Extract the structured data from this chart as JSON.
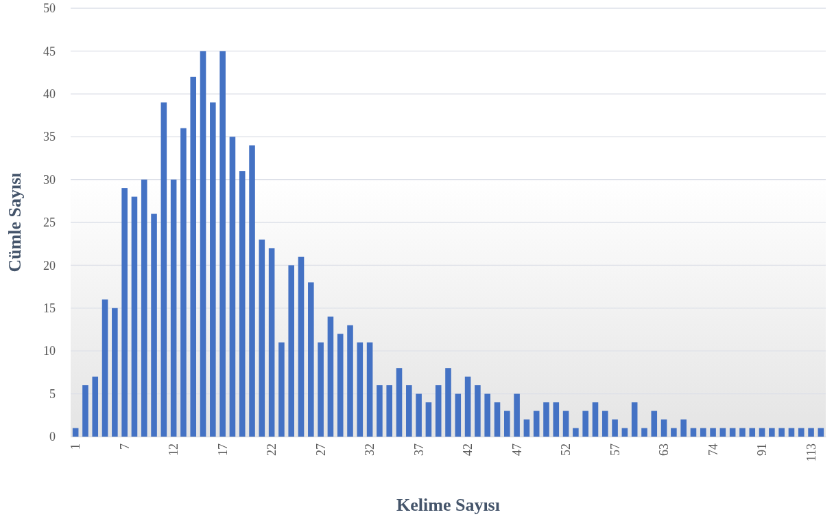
{
  "chart_data": {
    "type": "bar",
    "xlabel": "Kelime Sayısı",
    "ylabel": "Cümle Sayısı",
    "categories": [
      "1",
      null,
      null,
      null,
      null,
      "7",
      null,
      null,
      null,
      null,
      "12",
      null,
      null,
      null,
      null,
      "17",
      null,
      null,
      null,
      null,
      "22",
      null,
      null,
      null,
      null,
      "27",
      null,
      null,
      null,
      null,
      "32",
      null,
      null,
      null,
      null,
      "37",
      null,
      null,
      null,
      null,
      "42",
      null,
      null,
      null,
      null,
      "47",
      null,
      null,
      null,
      null,
      "52",
      null,
      null,
      null,
      null,
      "57",
      null,
      null,
      null,
      null,
      "63",
      null,
      null,
      null,
      null,
      "74",
      null,
      null,
      null,
      null,
      "91",
      null,
      null,
      null,
      null,
      "113",
      null
    ],
    "values": [
      1,
      6,
      7,
      16,
      15,
      29,
      28,
      30,
      26,
      39,
      30,
      36,
      42,
      45,
      39,
      45,
      35,
      31,
      34,
      23,
      22,
      11,
      20,
      21,
      18,
      11,
      14,
      12,
      13,
      11,
      11,
      6,
      6,
      8,
      6,
      5,
      4,
      6,
      8,
      5,
      7,
      6,
      5,
      4,
      3,
      5,
      2,
      3,
      4,
      4,
      3,
      1,
      3,
      4,
      3,
      2,
      1,
      4,
      1,
      3,
      2,
      1,
      2,
      1,
      1,
      1,
      1,
      1,
      1,
      1,
      1,
      1,
      1,
      1,
      1,
      1,
      1
    ],
    "color": "#4472c4",
    "ylim": [
      0,
      50
    ],
    "yticks": [
      0,
      5,
      10,
      15,
      20,
      25,
      30,
      35,
      40,
      45,
      50
    ],
    "grid": "y"
  }
}
